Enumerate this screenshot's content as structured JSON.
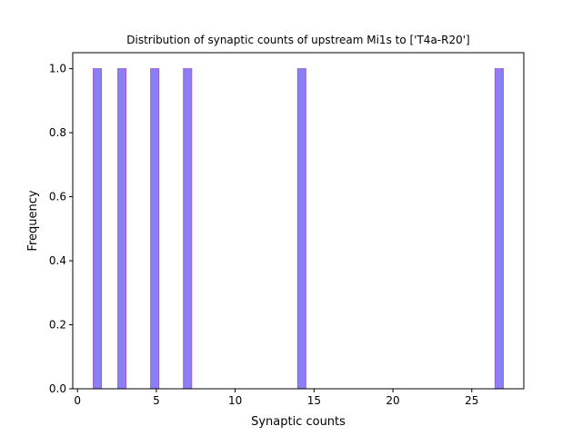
{
  "chart_data": {
    "type": "bar",
    "title": "Distribution of synaptic counts of upstream Mi1s to ['T4a-R20']",
    "xlabel": "Synaptic counts",
    "ylabel": "Frequency",
    "xlim": [
      -0.3,
      28.3
    ],
    "ylim": [
      0,
      1.05
    ],
    "xticks": [
      0,
      5,
      10,
      15,
      20,
      25
    ],
    "xtick_labels": [
      "0",
      "5",
      "10",
      "15",
      "20",
      "25"
    ],
    "yticks": [
      0.0,
      0.2,
      0.4,
      0.6,
      0.8,
      1.0
    ],
    "ytick_labels": [
      "0.0",
      "0.2",
      "0.4",
      "0.6",
      "0.8",
      "1.0"
    ],
    "bins": [
      {
        "x0": 1.0,
        "x1": 1.52,
        "count": 1
      },
      {
        "x0": 2.56,
        "x1": 3.08,
        "count": 1
      },
      {
        "x0": 4.64,
        "x1": 5.16,
        "count": 1
      },
      {
        "x0": 6.72,
        "x1": 7.24,
        "count": 1
      },
      {
        "x0": 13.96,
        "x1": 14.48,
        "count": 1
      },
      {
        "x0": 26.48,
        "x1": 27.0,
        "count": 1
      }
    ],
    "bar_color": "#8a7ff5",
    "bar_edge_color": "#9a5fcf",
    "grid": false,
    "legend": false
  }
}
